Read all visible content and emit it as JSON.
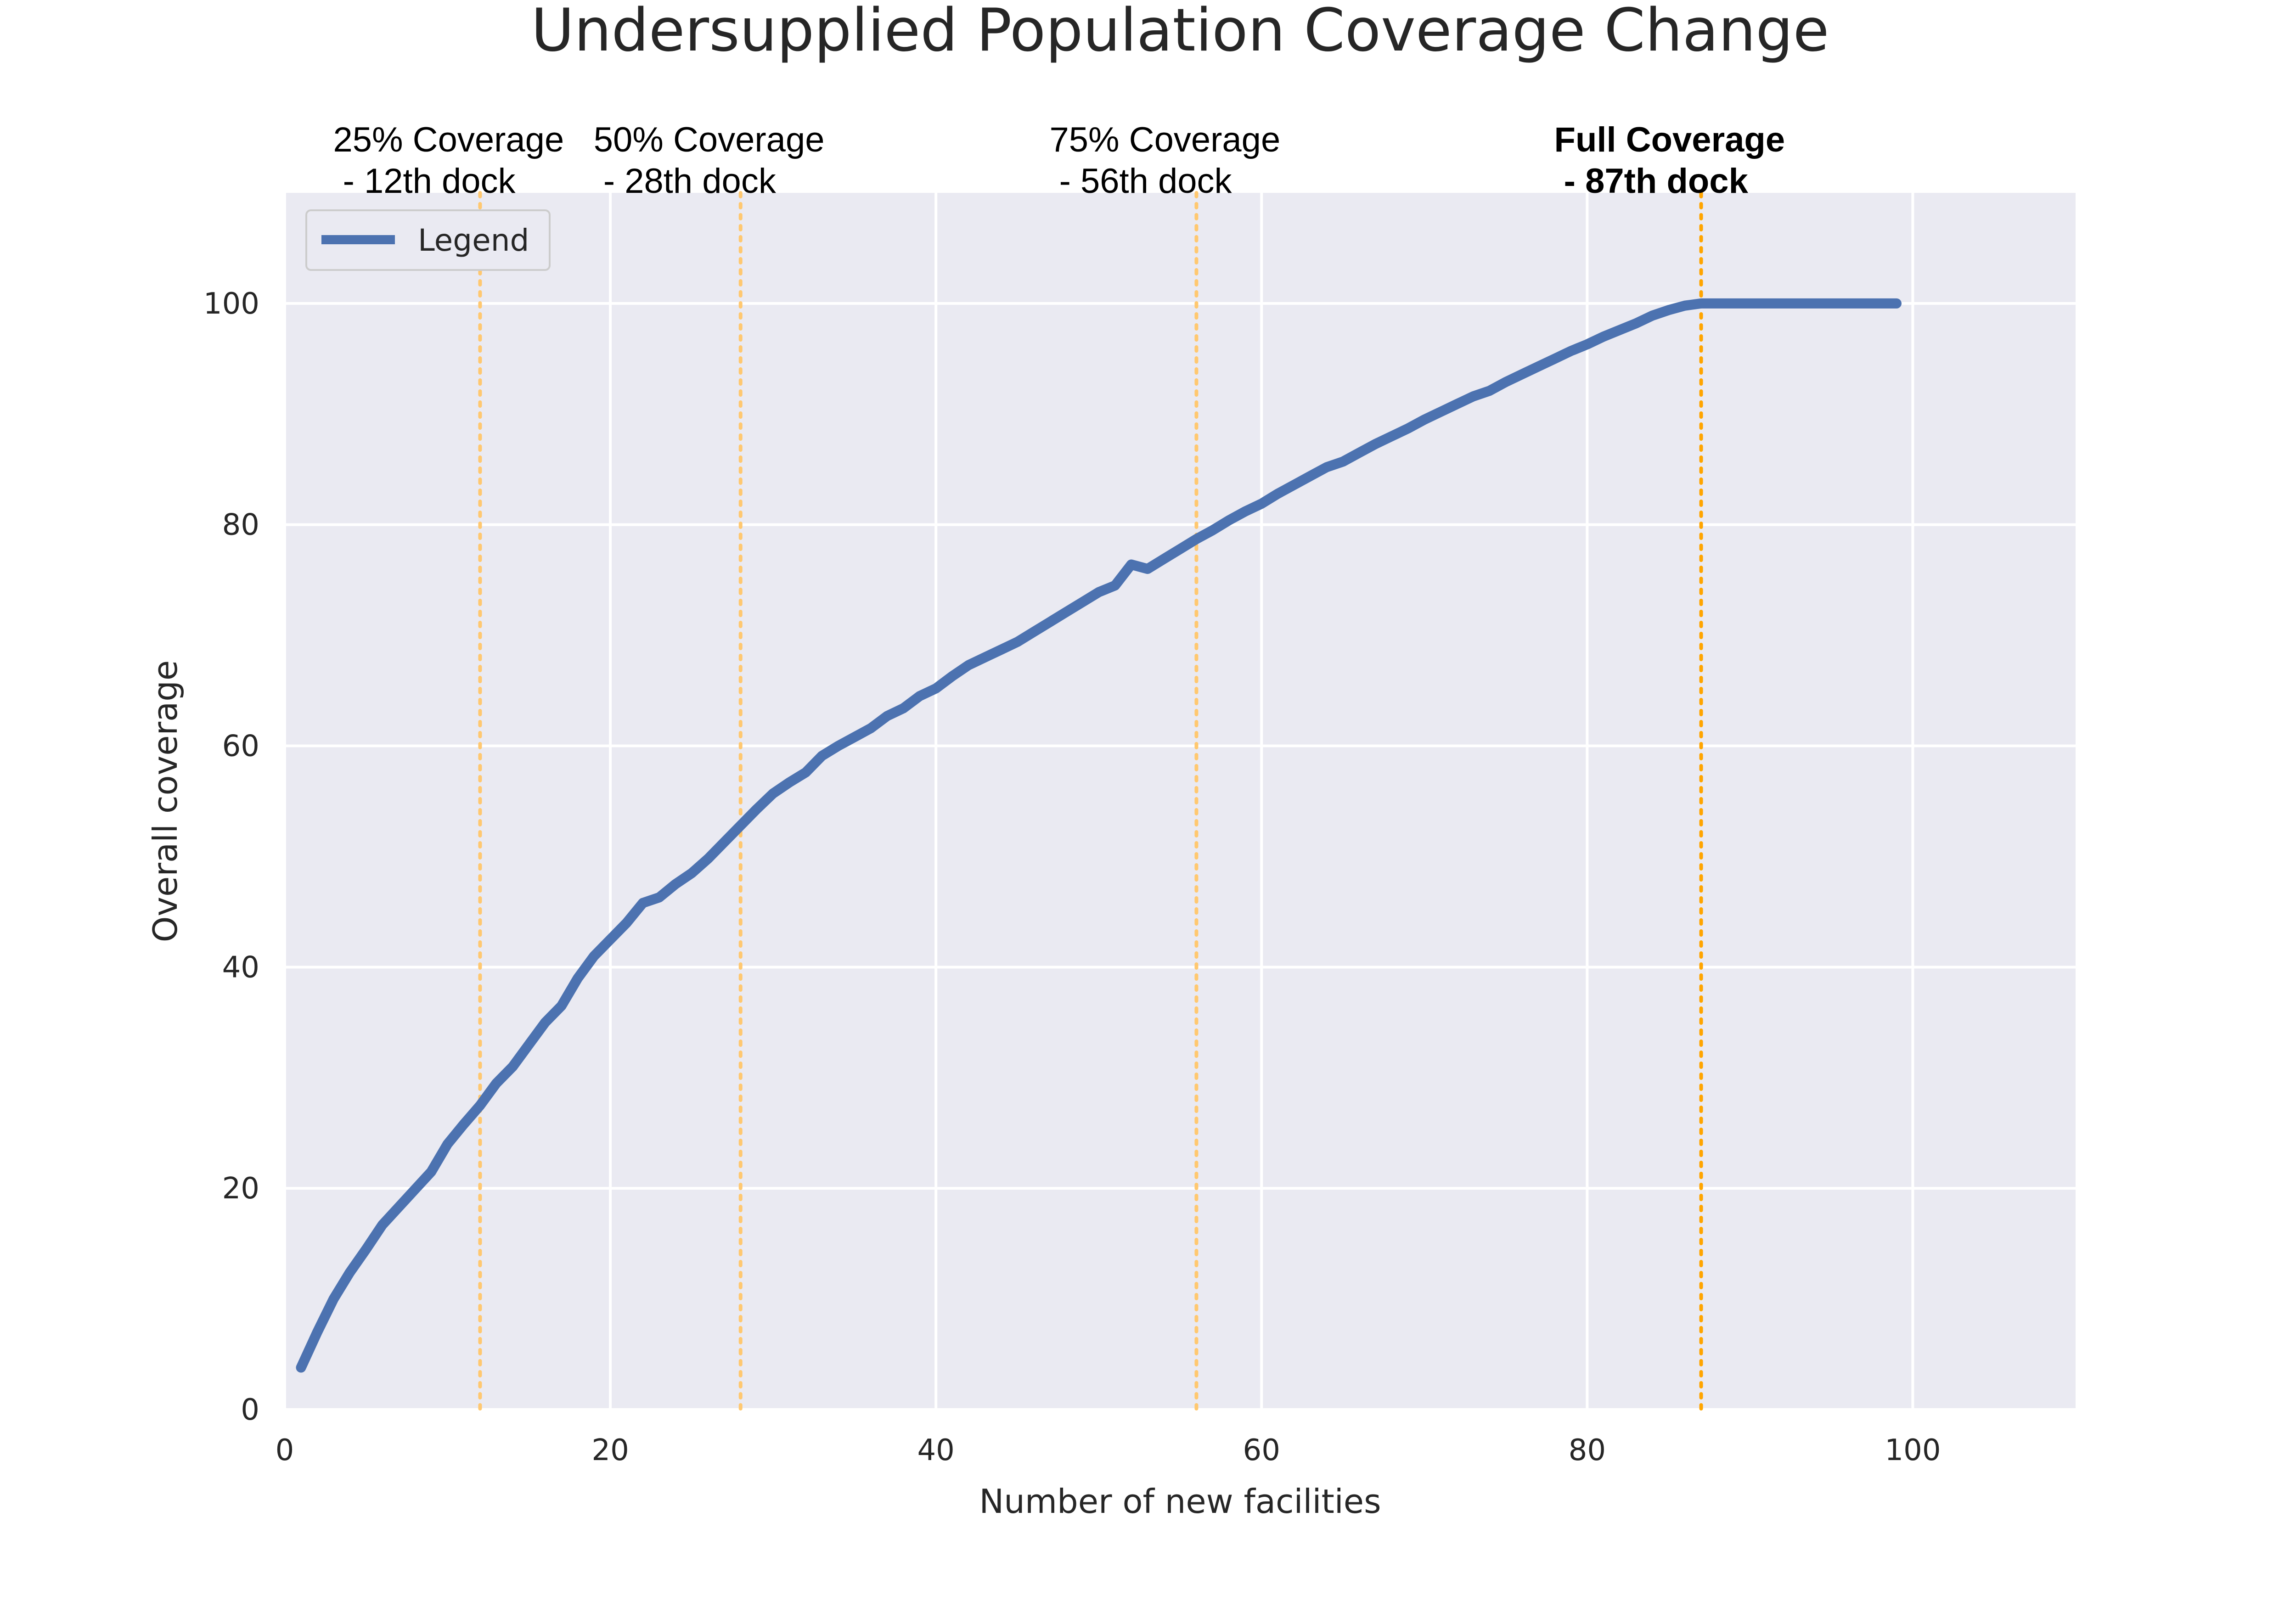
{
  "chart_data": {
    "type": "line",
    "title": "Undersupplied Population Coverage Change",
    "xlabel": "Number of new facilities",
    "ylabel": "Overall coverage",
    "xlim": [
      0,
      110
    ],
    "ylim": [
      0,
      110
    ],
    "xticks": [
      0,
      20,
      40,
      60,
      80,
      100
    ],
    "yticks": [
      0,
      20,
      40,
      60,
      80,
      100
    ],
    "grid": true,
    "legend_position": "top-left",
    "series": [
      {
        "name": "Legend",
        "color": "#4c72b0",
        "x": [
          1,
          2,
          3,
          4,
          5,
          6,
          7,
          8,
          9,
          10,
          11,
          12,
          13,
          14,
          15,
          16,
          17,
          18,
          19,
          20,
          21,
          22,
          23,
          24,
          25,
          26,
          27,
          28,
          29,
          30,
          31,
          32,
          33,
          34,
          35,
          36,
          37,
          38,
          39,
          40,
          41,
          42,
          43,
          44,
          45,
          46,
          47,
          48,
          49,
          50,
          51,
          52,
          53,
          54,
          55,
          56,
          57,
          58,
          59,
          60,
          61,
          62,
          63,
          64,
          65,
          66,
          67,
          68,
          69,
          70,
          71,
          72,
          73,
          74,
          75,
          76,
          77,
          78,
          79,
          80,
          81,
          82,
          83,
          84,
          85,
          86,
          87,
          88,
          89,
          90,
          91,
          92,
          93,
          94,
          95,
          96,
          97,
          98,
          99
        ],
        "y": [
          3.8,
          7.0,
          10.0,
          12.4,
          14.5,
          16.7,
          18.3,
          19.9,
          21.5,
          24.0,
          25.8,
          27.5,
          29.5,
          31.0,
          33.0,
          35.0,
          36.5,
          39.0,
          41.0,
          42.5,
          44.0,
          45.8,
          46.3,
          47.5,
          48.5,
          49.8,
          51.3,
          52.8,
          54.3,
          55.7,
          56.7,
          57.6,
          59.1,
          60.0,
          60.8,
          61.6,
          62.7,
          63.4,
          64.5,
          65.2,
          66.3,
          67.3,
          68.0,
          68.7,
          69.4,
          70.3,
          71.2,
          72.1,
          73.0,
          73.9,
          74.5,
          76.4,
          76.0,
          76.9,
          77.8,
          78.7,
          79.5,
          80.4,
          81.2,
          81.9,
          82.8,
          83.6,
          84.4,
          85.2,
          85.7,
          86.5,
          87.3,
          88.0,
          88.7,
          89.5,
          90.2,
          90.9,
          91.6,
          92.1,
          92.9,
          93.6,
          94.3,
          95.0,
          95.7,
          96.3,
          97.0,
          97.6,
          98.2,
          98.9,
          99.4,
          99.8,
          100,
          100,
          100,
          100,
          100,
          100,
          100,
          100,
          100,
          100,
          100,
          100,
          100
        ]
      }
    ],
    "vlines": [
      {
        "x": 12,
        "label": "25% Coverage\n - 12th dock",
        "bold": false,
        "color": "#ffc870"
      },
      {
        "x": 28,
        "label": "50% Coverage\n - 28th dock",
        "bold": false,
        "color": "#ffc870"
      },
      {
        "x": 56,
        "label": "75% Coverage\n - 56th dock",
        "bold": false,
        "color": "#ffc870"
      },
      {
        "x": 87,
        "label": "Full Coverage\n - 87th dock",
        "bold": true,
        "color": "#ffa500"
      }
    ],
    "colors": {
      "plot_background": "#eaeaf2",
      "grid": "#ffffff",
      "line": "#4c72b0"
    }
  }
}
